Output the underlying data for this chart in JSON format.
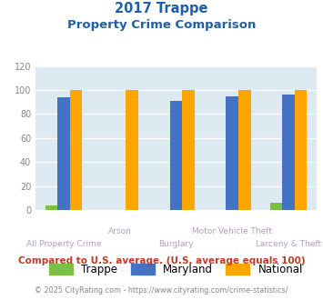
{
  "title_line1": "2017 Trappe",
  "title_line2": "Property Crime Comparison",
  "categories": [
    "All Property Crime",
    "Arson",
    "Burglary",
    "Motor Vehicle Theft",
    "Larceny & Theft"
  ],
  "trappe": [
    4,
    0,
    0,
    0,
    6
  ],
  "maryland": [
    94,
    0,
    91,
    95,
    96
  ],
  "national": [
    100,
    100,
    100,
    100,
    100
  ],
  "trappe_color": "#7dc142",
  "maryland_color": "#4472c4",
  "national_color": "#ffa500",
  "ylim": [
    0,
    120
  ],
  "yticks": [
    0,
    20,
    40,
    60,
    80,
    100,
    120
  ],
  "bg_color": "#deeaf1",
  "footnote": "Compared to U.S. average. (U.S. average equals 100)",
  "copyright": "© 2025 CityRating.com - https://www.cityrating.com/crime-statistics/",
  "title_color": "#1f5fa6",
  "footnote_color": "#c0392b",
  "copyright_color": "#888888",
  "label_color": "#b0a0c0",
  "tick_color": "#888888"
}
